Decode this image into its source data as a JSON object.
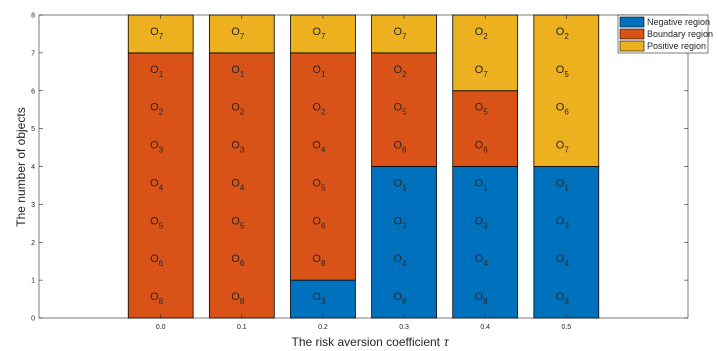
{
  "chart_data": {
    "type": "bar",
    "stacked": true,
    "xlabel": "The risk aversion coefficient",
    "xlabel_symbol": "τ",
    "ylabel": "The number of objects",
    "categories": [
      "0.0",
      "0.1",
      "0.2",
      "0.3",
      "0.4",
      "0.5"
    ],
    "ylim": [
      0,
      8
    ],
    "yticks": [
      0,
      1,
      2,
      3,
      4,
      5,
      6,
      7,
      8
    ],
    "grid": false,
    "legend_position": "top-right",
    "series": [
      {
        "name": "Negative region",
        "color": "#0072BD",
        "values": [
          0,
          0,
          1,
          4,
          4,
          4
        ],
        "members": [
          [],
          [],
          [
            "3"
          ],
          [
            "8",
            "4",
            "3",
            "1"
          ],
          [
            "8",
            "4",
            "3",
            "1"
          ],
          [
            "8",
            "4",
            "3",
            "1"
          ]
        ]
      },
      {
        "name": "Boundary region",
        "color": "#D95319",
        "values": [
          7,
          7,
          6,
          3,
          2,
          0
        ],
        "members": [
          [
            "8",
            "6",
            "5",
            "4",
            "3",
            "2",
            "1"
          ],
          [
            "8",
            "6",
            "5",
            "4",
            "3",
            "2",
            "1"
          ],
          [
            "8",
            "6",
            "5",
            "4",
            "2",
            "1"
          ],
          [
            "6",
            "5",
            "2"
          ],
          [
            "6",
            "5"
          ],
          []
        ]
      },
      {
        "name": "Positive region",
        "color": "#EDB120",
        "values": [
          1,
          1,
          1,
          1,
          2,
          4
        ],
        "members": [
          [
            "7"
          ],
          [
            "7"
          ],
          [
            "7"
          ],
          [
            "7"
          ],
          [
            "7",
            "2"
          ],
          [
            "7",
            "6",
            "5",
            "2"
          ]
        ]
      }
    ],
    "object_prefix": "O"
  }
}
